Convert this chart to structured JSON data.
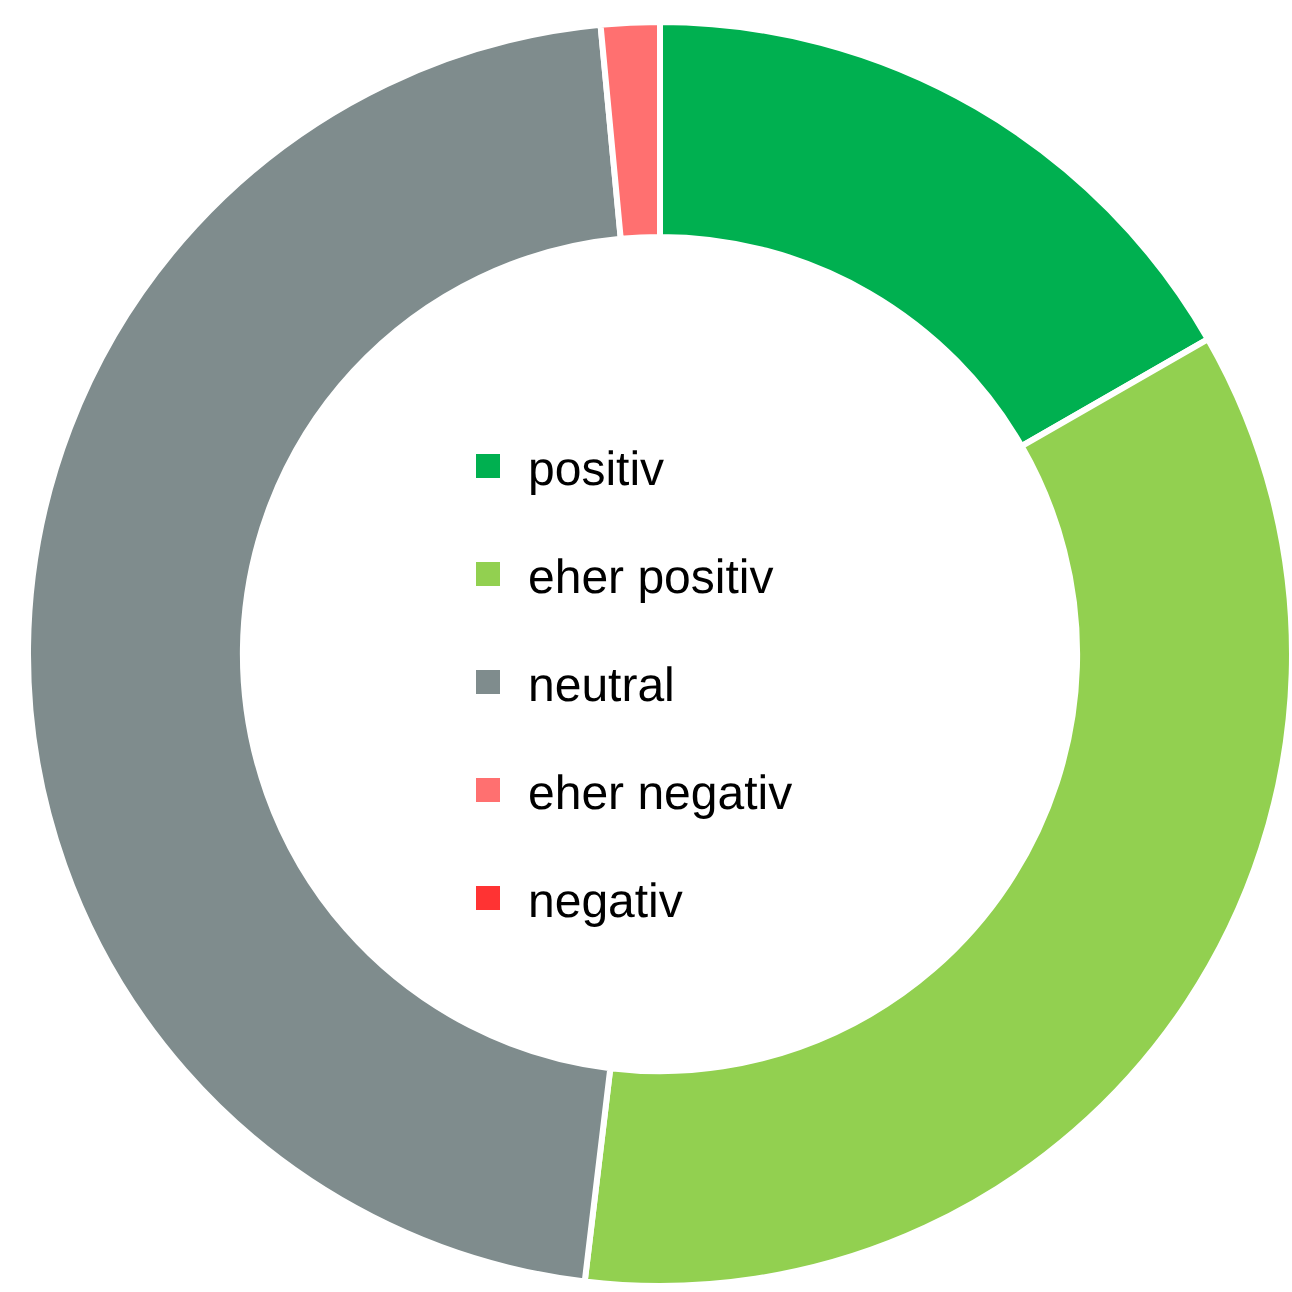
{
  "chart_data": {
    "type": "donut",
    "categories": [
      "positiv",
      "eher positiv",
      "neutral",
      "eher negativ",
      "negativ"
    ],
    "values": [
      16.7,
      35.2,
      46.6,
      1.5,
      0
    ],
    "colors": [
      "#00b050",
      "#92d050",
      "#7f8c8d",
      "#ff7070",
      "#ff3333"
    ],
    "legend": "center"
  }
}
